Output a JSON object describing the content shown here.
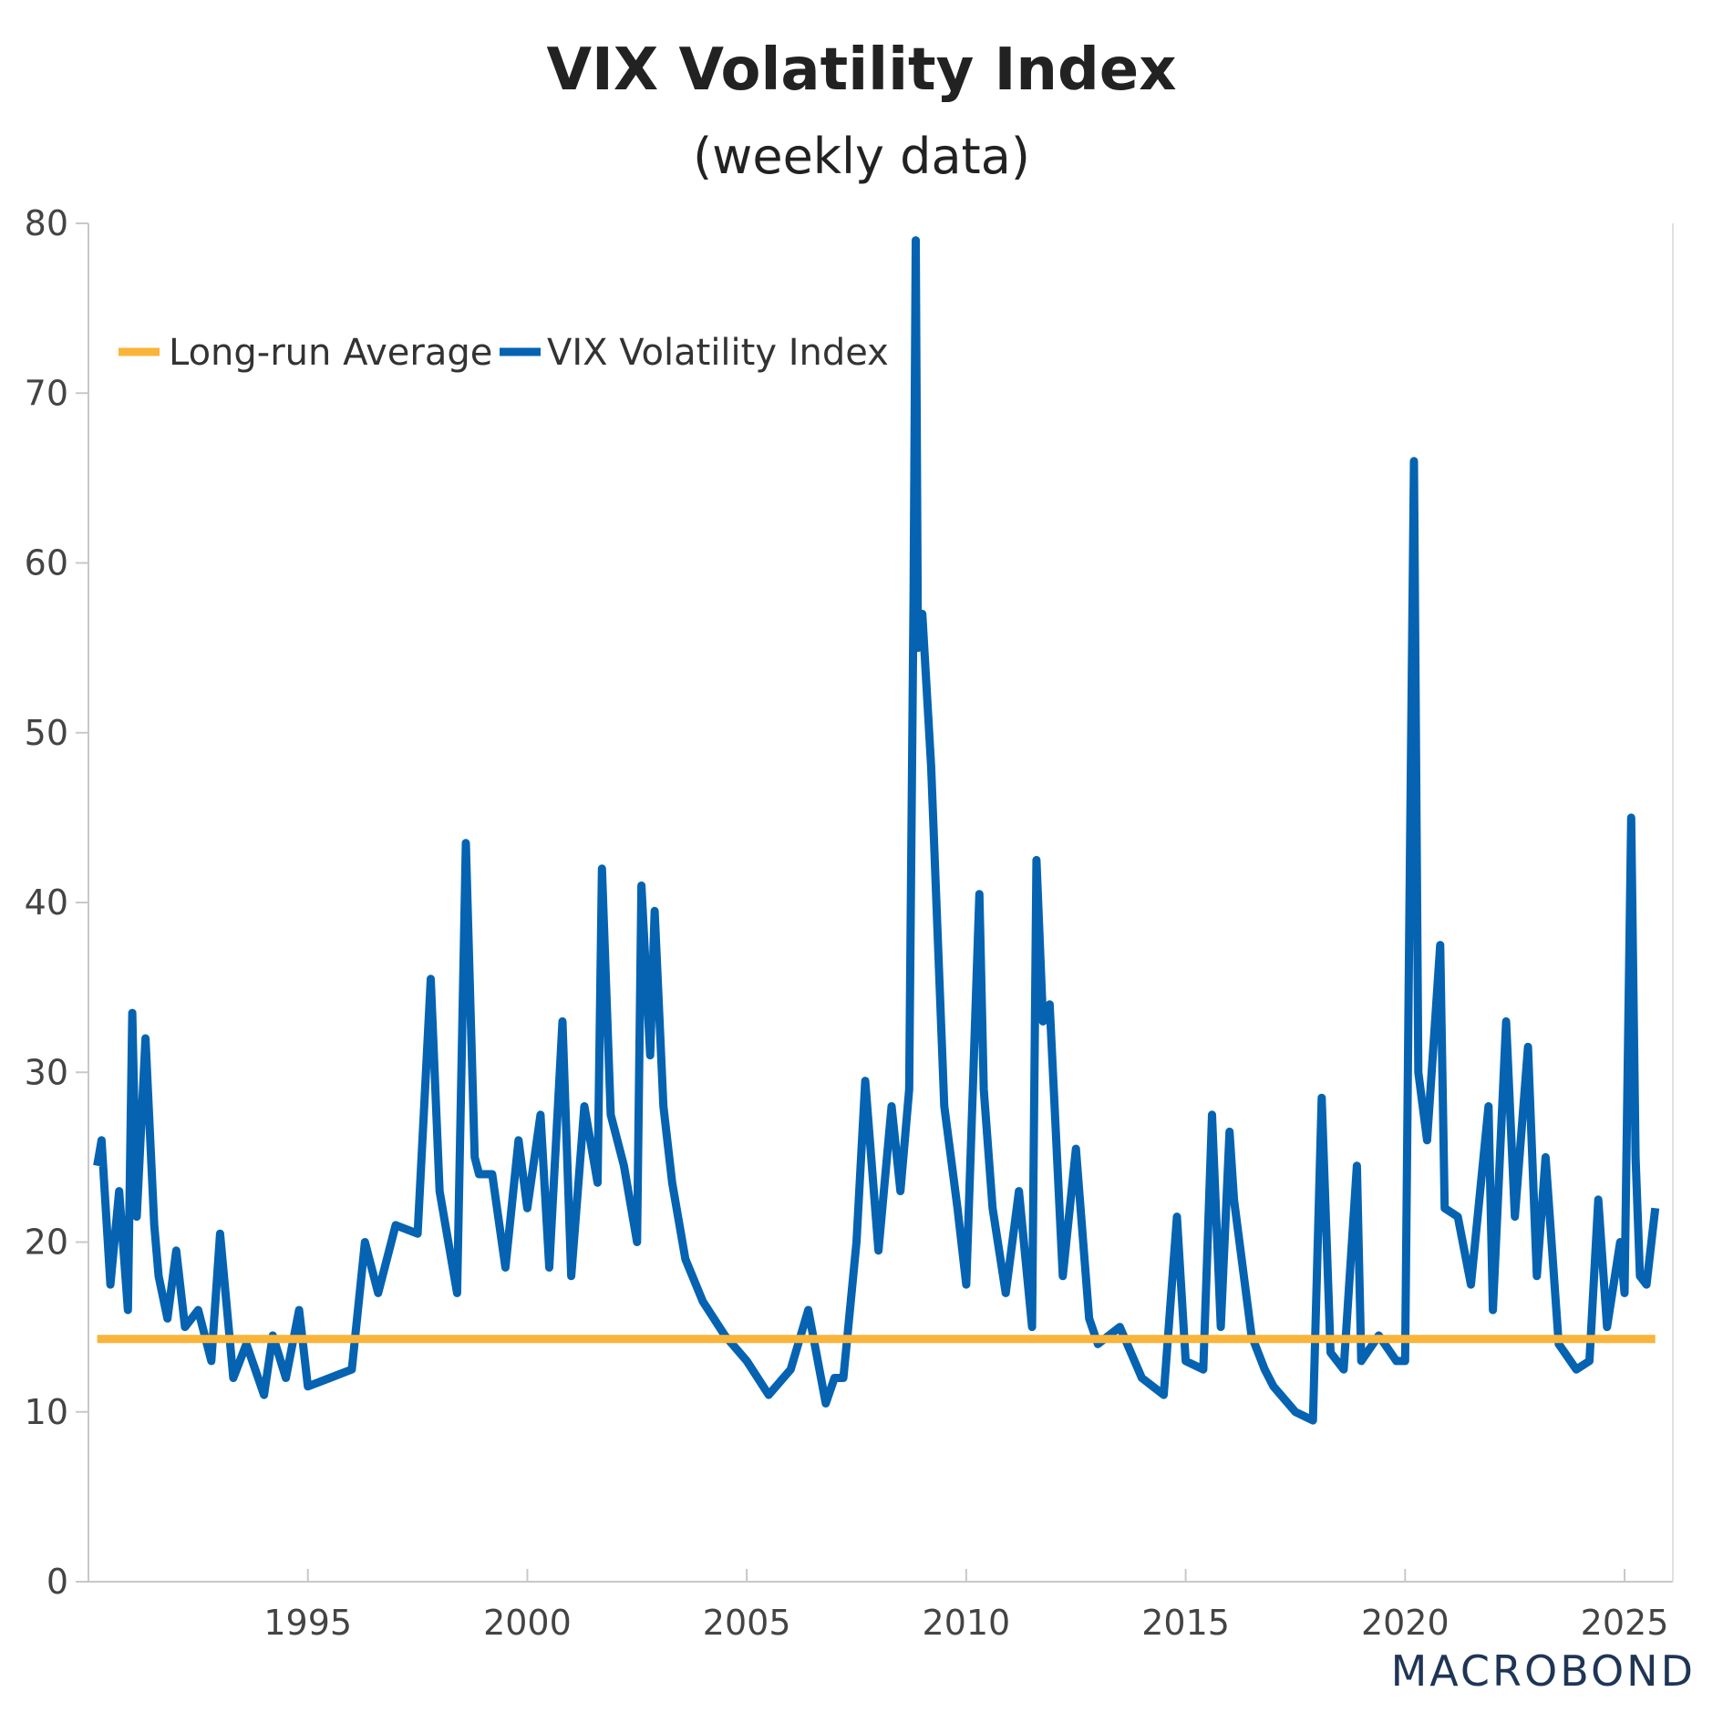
{
  "header": {
    "title": "VIX Volatility Index",
    "subtitle": "(weekly data)"
  },
  "brand": {
    "text": "MACROBOND"
  },
  "colors": {
    "vix": "#0563b1",
    "average": "#f9b43a",
    "axis": "#c8c8c8",
    "brand": "#1f3556"
  },
  "chart_data": {
    "type": "line",
    "grid": false,
    "legend_position": "top-left",
    "xlim": [
      1990.0,
      2026.1
    ],
    "ylim": [
      0,
      80
    ],
    "y_ticks": [
      0,
      10,
      20,
      30,
      40,
      50,
      60,
      70,
      80
    ],
    "x_ticks": [
      1995,
      2000,
      2005,
      2010,
      2015,
      2020,
      2025
    ],
    "series": [
      {
        "name": "Long-run Average",
        "color": "#f9b43a",
        "x": [
          1990.2,
          2025.7
        ],
        "y": [
          14.3,
          14.3
        ]
      },
      {
        "name": "VIX Volatility Index",
        "color": "#0563b1",
        "x": [
          1990.2,
          1990.3,
          1990.5,
          1990.7,
          1990.9,
          1991.0,
          1991.1,
          1991.3,
          1991.5,
          1991.6,
          1991.8,
          1992.0,
          1992.2,
          1992.5,
          1992.8,
          1993.0,
          1993.3,
          1993.6,
          1994.0,
          1994.2,
          1994.5,
          1994.8,
          1995.0,
          1995.5,
          1996.0,
          1996.3,
          1996.6,
          1997.0,
          1997.5,
          1997.8,
          1998.0,
          1998.4,
          1998.6,
          1998.8,
          1998.9,
          1999.2,
          1999.5,
          1999.8,
          2000.0,
          2000.3,
          2000.5,
          2000.8,
          2001.0,
          2001.3,
          2001.6,
          2001.7,
          2001.9,
          2002.2,
          2002.5,
          2002.6,
          2002.8,
          2002.9,
          2003.1,
          2003.3,
          2003.6,
          2004.0,
          2004.5,
          2005.0,
          2005.5,
          2006.0,
          2006.4,
          2006.8,
          2007.0,
          2007.2,
          2007.5,
          2007.7,
          2008.0,
          2008.3,
          2008.5,
          2008.7,
          2008.8,
          2008.85,
          2008.9,
          2009.0,
          2009.2,
          2009.5,
          2009.8,
          2010.0,
          2010.3,
          2010.4,
          2010.6,
          2010.9,
          2011.2,
          2011.5,
          2011.6,
          2011.75,
          2011.9,
          2012.2,
          2012.5,
          2012.8,
          2013.0,
          2013.5,
          2014.0,
          2014.5,
          2014.8,
          2015.0,
          2015.4,
          2015.6,
          2015.8,
          2016.0,
          2016.1,
          2016.5,
          2016.8,
          2017.0,
          2017.5,
          2017.9,
          2018.1,
          2018.3,
          2018.6,
          2018.9,
          2019.0,
          2019.4,
          2019.8,
          2020.0,
          2020.1,
          2020.2,
          2020.3,
          2020.5,
          2020.8,
          2020.9,
          2021.2,
          2021.5,
          2021.9,
          2022.0,
          2022.3,
          2022.5,
          2022.8,
          2023.0,
          2023.2,
          2023.5,
          2023.9,
          2024.2,
          2024.4,
          2024.6,
          2024.9,
          2025.0,
          2025.15,
          2025.25,
          2025.35,
          2025.5,
          2025.7
        ],
        "y": [
          24.5,
          26.0,
          17.5,
          23.0,
          16.0,
          33.5,
          21.5,
          32.0,
          21.0,
          18.0,
          15.5,
          19.5,
          15.0,
          16.0,
          13.0,
          20.5,
          12.0,
          14.0,
          11.0,
          14.5,
          12.0,
          16.0,
          11.5,
          12.0,
          12.5,
          20.0,
          17.0,
          21.0,
          20.5,
          35.5,
          23.0,
          17.0,
          43.5,
          25.0,
          24.0,
          24.0,
          18.5,
          26.0,
          22.0,
          27.5,
          18.5,
          33.0,
          18.0,
          28.0,
          23.5,
          42.0,
          27.5,
          24.5,
          20.0,
          41.0,
          31.0,
          39.5,
          28.0,
          23.5,
          19.0,
          16.5,
          14.5,
          13.0,
          11.0,
          12.5,
          16.0,
          10.5,
          12.0,
          12.0,
          20.0,
          29.5,
          19.5,
          28.0,
          23.0,
          29.0,
          58.0,
          79.0,
          55.0,
          57.0,
          48.0,
          28.0,
          22.0,
          17.5,
          40.5,
          29.0,
          22.0,
          17.0,
          23.0,
          15.0,
          42.5,
          33.0,
          34.0,
          18.0,
          25.5,
          15.5,
          14.0,
          15.0,
          12.0,
          11.0,
          21.5,
          13.0,
          12.5,
          27.5,
          15.0,
          26.5,
          22.5,
          14.5,
          12.5,
          11.5,
          10.0,
          9.5,
          28.5,
          13.5,
          12.5,
          24.5,
          13.0,
          14.5,
          13.0,
          13.0,
          40.0,
          66.0,
          30.0,
          26.0,
          37.5,
          22.0,
          21.5,
          17.5,
          28.0,
          16.0,
          33.0,
          21.5,
          31.5,
          18.0,
          25.0,
          14.0,
          12.5,
          13.0,
          22.5,
          15.0,
          20.0,
          17.0,
          45.0,
          25.0,
          18.0,
          17.5,
          22.0
        ]
      }
    ]
  }
}
